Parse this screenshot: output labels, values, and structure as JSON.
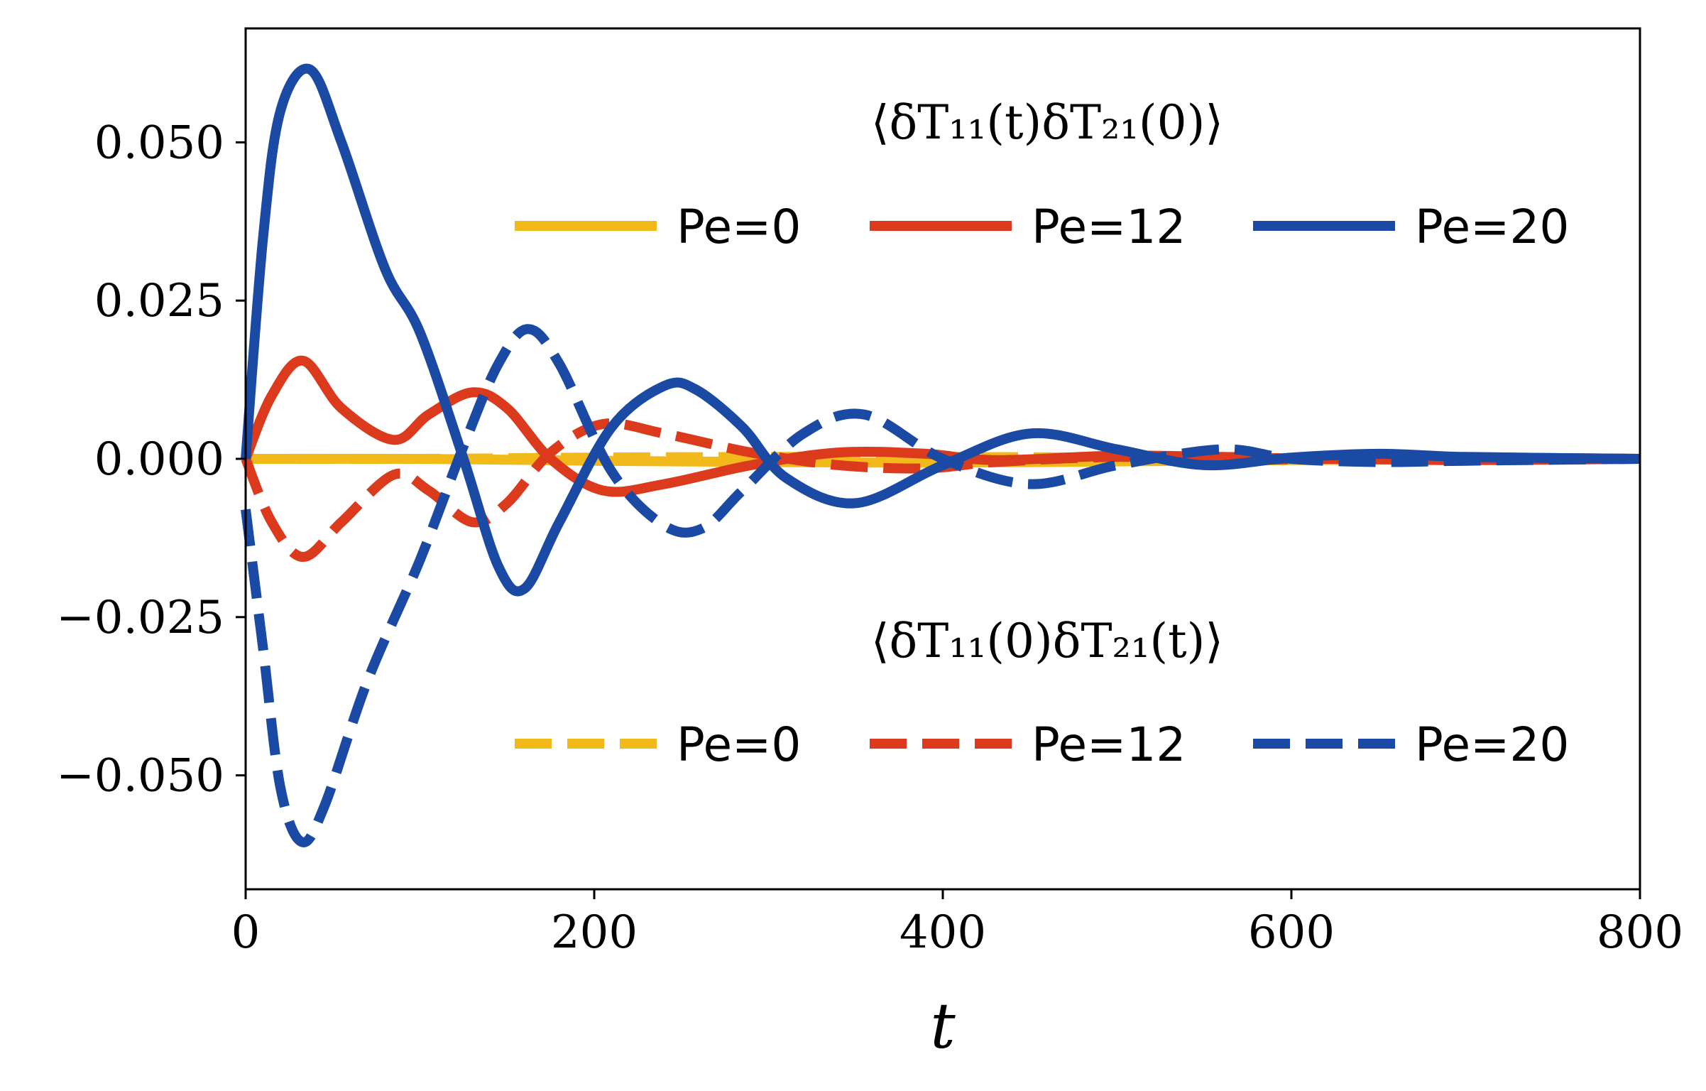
{
  "chart_data": {
    "type": "line",
    "xlabel": "t",
    "ylabel": "",
    "xlim": [
      0,
      800
    ],
    "ylim": [
      -0.068,
      0.068
    ],
    "xticks": [
      0,
      200,
      400,
      600,
      800
    ],
    "xtick_labels": [
      "0",
      "200",
      "400",
      "600",
      "800"
    ],
    "yticks": [
      0.05,
      0.025,
      0.0,
      -0.025,
      -0.05
    ],
    "ytick_labels": [
      "0.050",
      "0.025",
      "0.000",
      "−0.025",
      "−0.050"
    ],
    "colors": {
      "pe0": "#f2b91b",
      "pe12": "#dc3a1c",
      "pe20": "#1a4aa3"
    },
    "legend_groups": [
      {
        "title": "⟨δT₁₁(t)δT₂₁(0)⟩",
        "location": "upper-right",
        "entries": [
          "Pe=0",
          "Pe=12",
          "Pe=20"
        ],
        "style": "solid"
      },
      {
        "title": "⟨δT₁₁(0)δT₂₁(t)⟩",
        "location": "lower-right",
        "entries": [
          "Pe=0",
          "Pe=12",
          "Pe=20"
        ],
        "style": "dashed"
      }
    ],
    "series": [
      {
        "name": "Pe=0 ⟨δT₁₁(t)δT₂₁(0)⟩",
        "color_key": "pe0",
        "style": "solid",
        "x": [
          0,
          100,
          200,
          300,
          400,
          500,
          600,
          700,
          800
        ],
        "y": [
          0.0,
          0.0,
          -0.0003,
          -0.0005,
          -0.0006,
          -0.0004,
          -0.0002,
          -0.0001,
          0.0
        ]
      },
      {
        "name": "Pe=0 ⟨δT₁₁(0)δT₂₁(t)⟩",
        "color_key": "pe0",
        "style": "dashed",
        "x": [
          0,
          100,
          200,
          300,
          400,
          500,
          600,
          700,
          800
        ],
        "y": [
          0.0,
          0.0,
          0.0002,
          0.0003,
          0.0003,
          0.0002,
          0.0001,
          0.0,
          0.0
        ]
      },
      {
        "name": "Pe=12 ⟨δT₁₁(t)δT₂₁(0)⟩",
        "color_key": "pe12",
        "style": "solid",
        "x": [
          0,
          15,
          33,
          55,
          85,
          105,
          130,
          150,
          175,
          205,
          240,
          290,
          340,
          390,
          430,
          500,
          560,
          620,
          700,
          800
        ],
        "y": [
          0.0,
          0.01,
          0.0155,
          0.008,
          0.003,
          0.007,
          0.0105,
          0.008,
          0.0,
          -0.005,
          -0.004,
          -0.001,
          0.001,
          0.0008,
          -0.0002,
          0.0005,
          0.0003,
          0.0,
          0.0002,
          0.0
        ]
      },
      {
        "name": "Pe=12 ⟨δT₁₁(0)δT₂₁(t)⟩",
        "color_key": "pe12",
        "style": "dashed",
        "x": [
          0,
          15,
          33,
          55,
          85,
          105,
          130,
          150,
          175,
          205,
          240,
          290,
          340,
          390,
          430,
          500,
          560,
          620,
          700,
          800
        ],
        "y": [
          0.0,
          -0.01,
          -0.0155,
          -0.01,
          -0.0025,
          -0.005,
          -0.01,
          -0.007,
          0.001,
          0.0055,
          0.004,
          0.001,
          -0.001,
          -0.0015,
          -0.0005,
          0.0003,
          -0.0002,
          0.0,
          -0.0002,
          0.0
        ]
      },
      {
        "name": "Pe=20 ⟨δT₁₁(t)δT₂₁(0)⟩",
        "color_key": "pe20",
        "style": "solid",
        "x": [
          0,
          10,
          20,
          37,
          55,
          80,
          100,
          125,
          145,
          160,
          180,
          210,
          240,
          258,
          285,
          310,
          350,
          400,
          450,
          500,
          550,
          600,
          650,
          700,
          800
        ],
        "y": [
          0.0,
          0.035,
          0.055,
          0.0615,
          0.05,
          0.03,
          0.02,
          0.0,
          -0.017,
          -0.0205,
          -0.01,
          0.005,
          0.0115,
          0.011,
          0.005,
          -0.003,
          -0.007,
          -0.001,
          0.004,
          0.0015,
          -0.001,
          0.0002,
          0.0008,
          0.0003,
          0.0
        ]
      },
      {
        "name": "Pe=20 ⟨δT₁₁(0)δT₂₁(t)⟩",
        "color_key": "pe20",
        "style": "dashed",
        "x": [
          0,
          10,
          20,
          32,
          45,
          70,
          100,
          125,
          145,
          162,
          180,
          210,
          240,
          262,
          285,
          320,
          355,
          400,
          450,
          500,
          560,
          600,
          650,
          700,
          800
        ],
        "y": [
          -0.008,
          -0.03,
          -0.052,
          -0.0605,
          -0.055,
          -0.035,
          -0.016,
          0.002,
          0.015,
          0.0205,
          0.015,
          -0.002,
          -0.0105,
          -0.011,
          -0.005,
          0.004,
          0.007,
          0.0,
          -0.004,
          -0.001,
          0.0015,
          0.0,
          -0.0005,
          -0.0003,
          0.0
        ]
      }
    ]
  }
}
